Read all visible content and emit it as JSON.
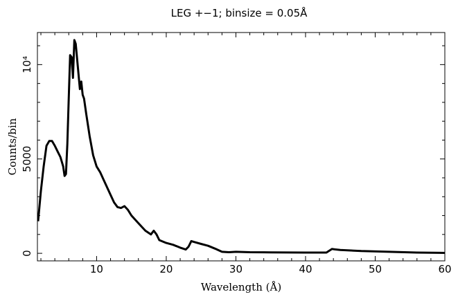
{
  "chart_data": {
    "type": "line",
    "title": "LEG +−1; binsize = 0.05Å",
    "xlabel": "Wavelength (Å)",
    "ylabel": "Counts/bin",
    "xlim": [
      1.5,
      60
    ],
    "ylim": [
      -400,
      11700
    ],
    "grid": false,
    "legend": "none",
    "x_ticks": [
      10,
      20,
      30,
      40,
      50,
      60
    ],
    "y_ticks": [
      {
        "value": 0,
        "label": "0"
      },
      {
        "value": 5000,
        "label": "5000"
      },
      {
        "value": 10000,
        "label": "10⁴"
      }
    ],
    "series": [
      {
        "x": [
          1.6,
          2.0,
          2.4,
          2.8,
          3.2,
          3.6,
          4.0,
          4.4,
          4.8,
          5.2,
          5.4,
          5.6,
          5.8,
          6.0,
          6.2,
          6.4,
          6.6,
          6.8,
          7.0,
          7.2,
          7.4,
          7.6,
          7.8,
          8.0,
          8.2,
          8.5,
          9.0,
          9.5,
          10.0,
          10.5,
          11.0,
          11.5,
          12.0,
          12.5,
          13.0,
          13.5,
          14.0,
          14.5,
          15.0,
          16.0,
          17.0,
          17.8,
          18.2,
          18.6,
          19.0,
          20.0,
          21.0,
          22.0,
          22.8,
          23.2,
          23.6,
          24.0,
          25.0,
          26.0,
          27.0,
          28.0,
          29.0,
          30.0,
          32.0,
          35.0,
          40.0,
          43.0,
          43.8,
          44.2,
          45.0,
          48.0,
          52.0,
          56.0,
          60.0
        ],
        "values": [
          1700,
          3300,
          4600,
          5700,
          5950,
          5950,
          5700,
          5400,
          5100,
          4600,
          4100,
          4200,
          5800,
          8200,
          10500,
          10400,
          9300,
          11300,
          11100,
          10300,
          9500,
          8700,
          9100,
          8400,
          8200,
          7400,
          6200,
          5200,
          4600,
          4300,
          3900,
          3500,
          3100,
          2700,
          2450,
          2400,
          2500,
          2300,
          2000,
          1600,
          1200,
          1000,
          1200,
          1000,
          700,
          550,
          450,
          300,
          200,
          350,
          650,
          600,
          500,
          400,
          250,
          80,
          60,
          80,
          60,
          50,
          40,
          40,
          230,
          210,
          180,
          120,
          80,
          40,
          20
        ]
      }
    ]
  }
}
